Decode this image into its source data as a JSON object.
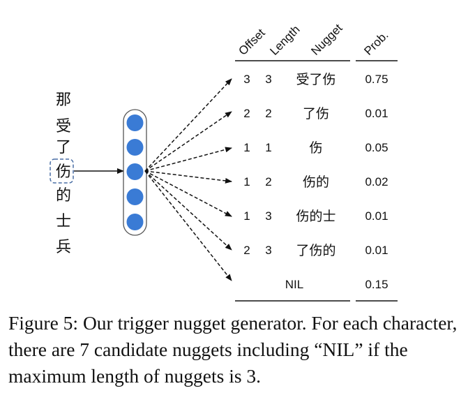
{
  "sentence_chars": [
    "那",
    "受",
    "了",
    "伤",
    "的",
    "士",
    "兵"
  ],
  "highlighted_char": "伤",
  "neuron_color": "#3a7bd5",
  "table": {
    "headers": [
      "Offset",
      "Length",
      "Nugget",
      "Prob."
    ],
    "rows": [
      {
        "offset": "3",
        "length": "3",
        "nugget": "受了伤",
        "prob": "0.75"
      },
      {
        "offset": "2",
        "length": "2",
        "nugget": "了伤",
        "prob": "0.01"
      },
      {
        "offset": "1",
        "length": "1",
        "nugget": "伤",
        "prob": "0.05"
      },
      {
        "offset": "1",
        "length": "2",
        "nugget": "伤的",
        "prob": "0.02"
      },
      {
        "offset": "1",
        "length": "3",
        "nugget": "伤的士",
        "prob": "0.01"
      },
      {
        "offset": "2",
        "length": "3",
        "nugget": "了伤的",
        "prob": "0.01"
      },
      {
        "offset": "",
        "length": "",
        "nugget": "NIL",
        "prob": "0.15"
      }
    ]
  },
  "caption": "Figure 5: Our trigger nugget generator. For each character, there are 7 candidate nuggets including “NIL” if the maximum length of nuggets is 3."
}
